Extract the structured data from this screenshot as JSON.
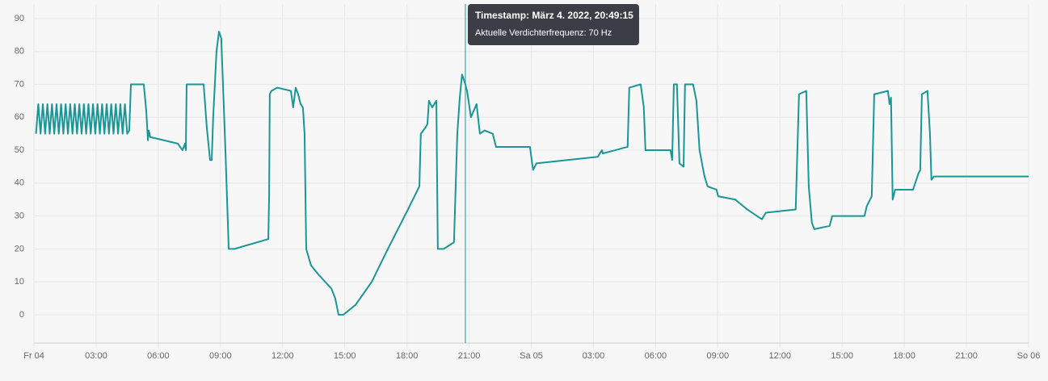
{
  "chart_data": {
    "type": "line",
    "x": [
      0.1,
      0.21,
      0.32,
      0.43,
      0.54,
      0.65,
      0.76,
      0.87,
      0.98,
      1.09,
      1.2,
      1.31,
      1.42,
      1.53,
      1.64,
      1.75,
      1.86,
      1.97,
      2.08,
      2.19,
      2.3,
      2.41,
      2.52,
      2.63,
      2.74,
      2.85,
      2.96,
      3.07,
      3.18,
      3.29,
      3.4,
      3.51,
      3.62,
      3.73,
      3.84,
      3.95,
      4.06,
      4.17,
      4.28,
      4.39,
      4.5,
      4.6,
      4.68,
      5.3,
      5.42,
      5.5,
      5.54,
      5.61,
      6.94,
      7.17,
      7.29,
      7.33,
      7.37,
      8.19,
      8.34,
      8.5,
      8.58,
      8.65,
      8.81,
      8.93,
      9.04,
      9.24,
      9.4,
      9.67,
      11.31,
      11.35,
      11.38,
      11.46,
      11.74,
      12.4,
      12.51,
      12.63,
      12.75,
      12.87,
      12.98,
      13.06,
      13.14,
      13.37,
      13.76,
      14.35,
      14.54,
      14.7,
      14.93,
      15.52,
      16.3,
      17.08,
      18.05,
      18.6,
      18.67,
      18.91,
      18.99,
      19.06,
      19.22,
      19.42,
      19.49,
      19.77,
      20.27,
      20.43,
      20.55,
      20.66,
      20.82,
      20.9,
      21.09,
      21.36,
      21.52,
      21.75,
      22.14,
      22.3,
      23.94,
      24.02,
      24.09,
      24.25,
      27.21,
      27.41,
      27.45,
      28.65,
      28.73,
      29.28,
      29.43,
      29.51,
      30.72,
      30.8,
      30.88,
      31.03,
      31.15,
      31.35,
      31.42,
      31.81,
      31.97,
      32.12,
      32.36,
      32.51,
      32.94,
      33.02,
      33.84,
      34.23,
      34.42,
      35.13,
      35.32,
      36.76,
      36.92,
      37.27,
      37.39,
      37.54,
      37.66,
      38.4,
      38.52,
      40.08,
      40.19,
      40.43,
      40.55,
      41.21,
      41.29,
      41.36,
      41.44,
      41.56,
      42.42,
      42.69,
      42.77,
      42.85,
      43.12,
      43.24,
      43.31,
      43.43,
      48
    ],
    "series": [
      {
        "color": "#1b9696",
        "values": [
          55,
          64,
          55,
          64,
          55,
          64,
          55,
          64,
          55,
          64,
          55,
          64,
          55,
          64,
          55,
          64,
          55,
          64,
          55,
          64,
          55,
          64,
          55,
          64,
          55,
          64,
          55,
          64,
          55,
          64,
          55,
          64,
          55,
          64,
          55,
          64,
          55,
          64,
          55,
          64,
          55,
          56,
          70,
          70,
          62,
          53,
          56,
          54,
          52,
          50,
          52,
          50,
          70,
          70,
          57,
          47,
          47,
          60,
          80,
          86,
          84,
          50,
          20,
          20,
          23,
          36,
          67,
          68,
          69,
          68,
          63,
          69,
          67,
          64,
          63,
          55,
          20,
          15,
          12,
          8,
          5,
          0,
          0,
          3,
          10,
          20,
          32,
          39,
          55,
          57,
          58,
          65,
          63,
          65,
          20,
          20,
          22,
          55,
          66,
          73,
          70,
          68,
          60,
          64,
          55,
          56,
          55,
          51,
          51,
          47,
          44,
          46,
          48,
          50,
          49,
          51,
          69,
          70,
          63,
          50,
          50,
          47,
          70,
          70,
          46,
          45,
          70,
          70,
          65,
          50,
          42,
          39,
          38,
          36,
          35,
          33,
          32,
          29,
          31,
          32,
          67,
          68,
          39,
          28,
          26,
          27,
          30,
          30,
          33,
          36,
          67,
          68,
          64,
          66,
          35,
          38,
          38,
          43,
          44,
          67,
          68,
          55,
          41,
          42,
          42
        ]
      }
    ],
    "xlim": [
      0,
      48
    ],
    "xticks": [
      {
        "value": 0,
        "label": "Fr 04"
      },
      {
        "value": 3,
        "label": "03:00"
      },
      {
        "value": 6,
        "label": "06:00"
      },
      {
        "value": 9,
        "label": "09:00"
      },
      {
        "value": 12,
        "label": "12:00"
      },
      {
        "value": 15,
        "label": "15:00"
      },
      {
        "value": 18,
        "label": "18:00"
      },
      {
        "value": 21,
        "label": "21:00"
      },
      {
        "value": 24,
        "label": "Sa 05"
      },
      {
        "value": 27,
        "label": "03:00"
      },
      {
        "value": 30,
        "label": "06:00"
      },
      {
        "value": 33,
        "label": "09:00"
      },
      {
        "value": 36,
        "label": "12:00"
      },
      {
        "value": 39,
        "label": "15:00"
      },
      {
        "value": 42,
        "label": "18:00"
      },
      {
        "value": 45,
        "label": "21:00"
      },
      {
        "value": 48,
        "label": "So 06"
      }
    ],
    "ylim": [
      -8.6,
      94.4
    ],
    "yticks": [
      0,
      10,
      20,
      30,
      40,
      50,
      60,
      70,
      80,
      90
    ],
    "grid": true,
    "tooltip": {
      "x": 20.82,
      "title": "Timestamp: März 4. 2022, 20:49:15",
      "label": "Aktuelle Verdichterfrequenz:",
      "value": 70,
      "unit": "Hz"
    }
  }
}
